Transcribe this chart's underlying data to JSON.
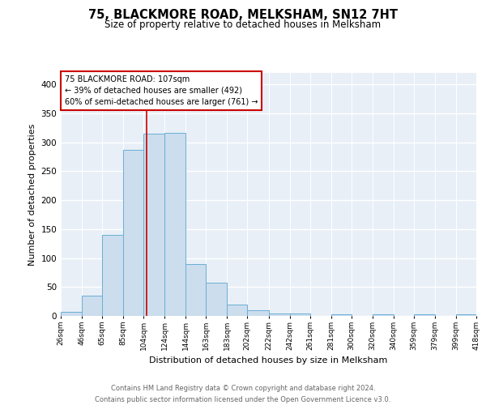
{
  "title": "75, BLACKMORE ROAD, MELKSHAM, SN12 7HT",
  "subtitle": "Size of property relative to detached houses in Melksham",
  "xlabel": "Distribution of detached houses by size in Melksham",
  "ylabel": "Number of detached properties",
  "bar_color": "#ccdded",
  "bar_edge_color": "#6aafd6",
  "background_color": "#e8eff7",
  "grid_color": "#ffffff",
  "annotation_line1": "75 BLACKMORE ROAD: 107sqm",
  "annotation_line2": "← 39% of detached houses are smaller (492)",
  "annotation_line3": "60% of semi-detached houses are larger (761) →",
  "annotation_box_color": "#ffffff",
  "annotation_box_edge": "#cc0000",
  "red_line_x": 107,
  "red_line_color": "#cc0000",
  "footer_text": "Contains HM Land Registry data © Crown copyright and database right 2024.\nContains public sector information licensed under the Open Government Licence v3.0.",
  "bin_edges": [
    26,
    46,
    65,
    85,
    104,
    124,
    144,
    163,
    183,
    202,
    222,
    242,
    261,
    281,
    300,
    320,
    340,
    359,
    379,
    399,
    418
  ],
  "bin_labels": [
    "26sqm",
    "46sqm",
    "65sqm",
    "85sqm",
    "104sqm",
    "124sqm",
    "144sqm",
    "163sqm",
    "183sqm",
    "202sqm",
    "222sqm",
    "242sqm",
    "261sqm",
    "281sqm",
    "300sqm",
    "320sqm",
    "340sqm",
    "359sqm",
    "379sqm",
    "399sqm",
    "418sqm"
  ],
  "bar_heights": [
    7,
    35,
    140,
    287,
    315,
    317,
    90,
    57,
    19,
    10,
    4,
    4,
    0,
    3,
    0,
    3,
    0,
    3,
    0,
    3
  ],
  "ylim": [
    0,
    420
  ],
  "yticks": [
    0,
    50,
    100,
    150,
    200,
    250,
    300,
    350,
    400
  ]
}
